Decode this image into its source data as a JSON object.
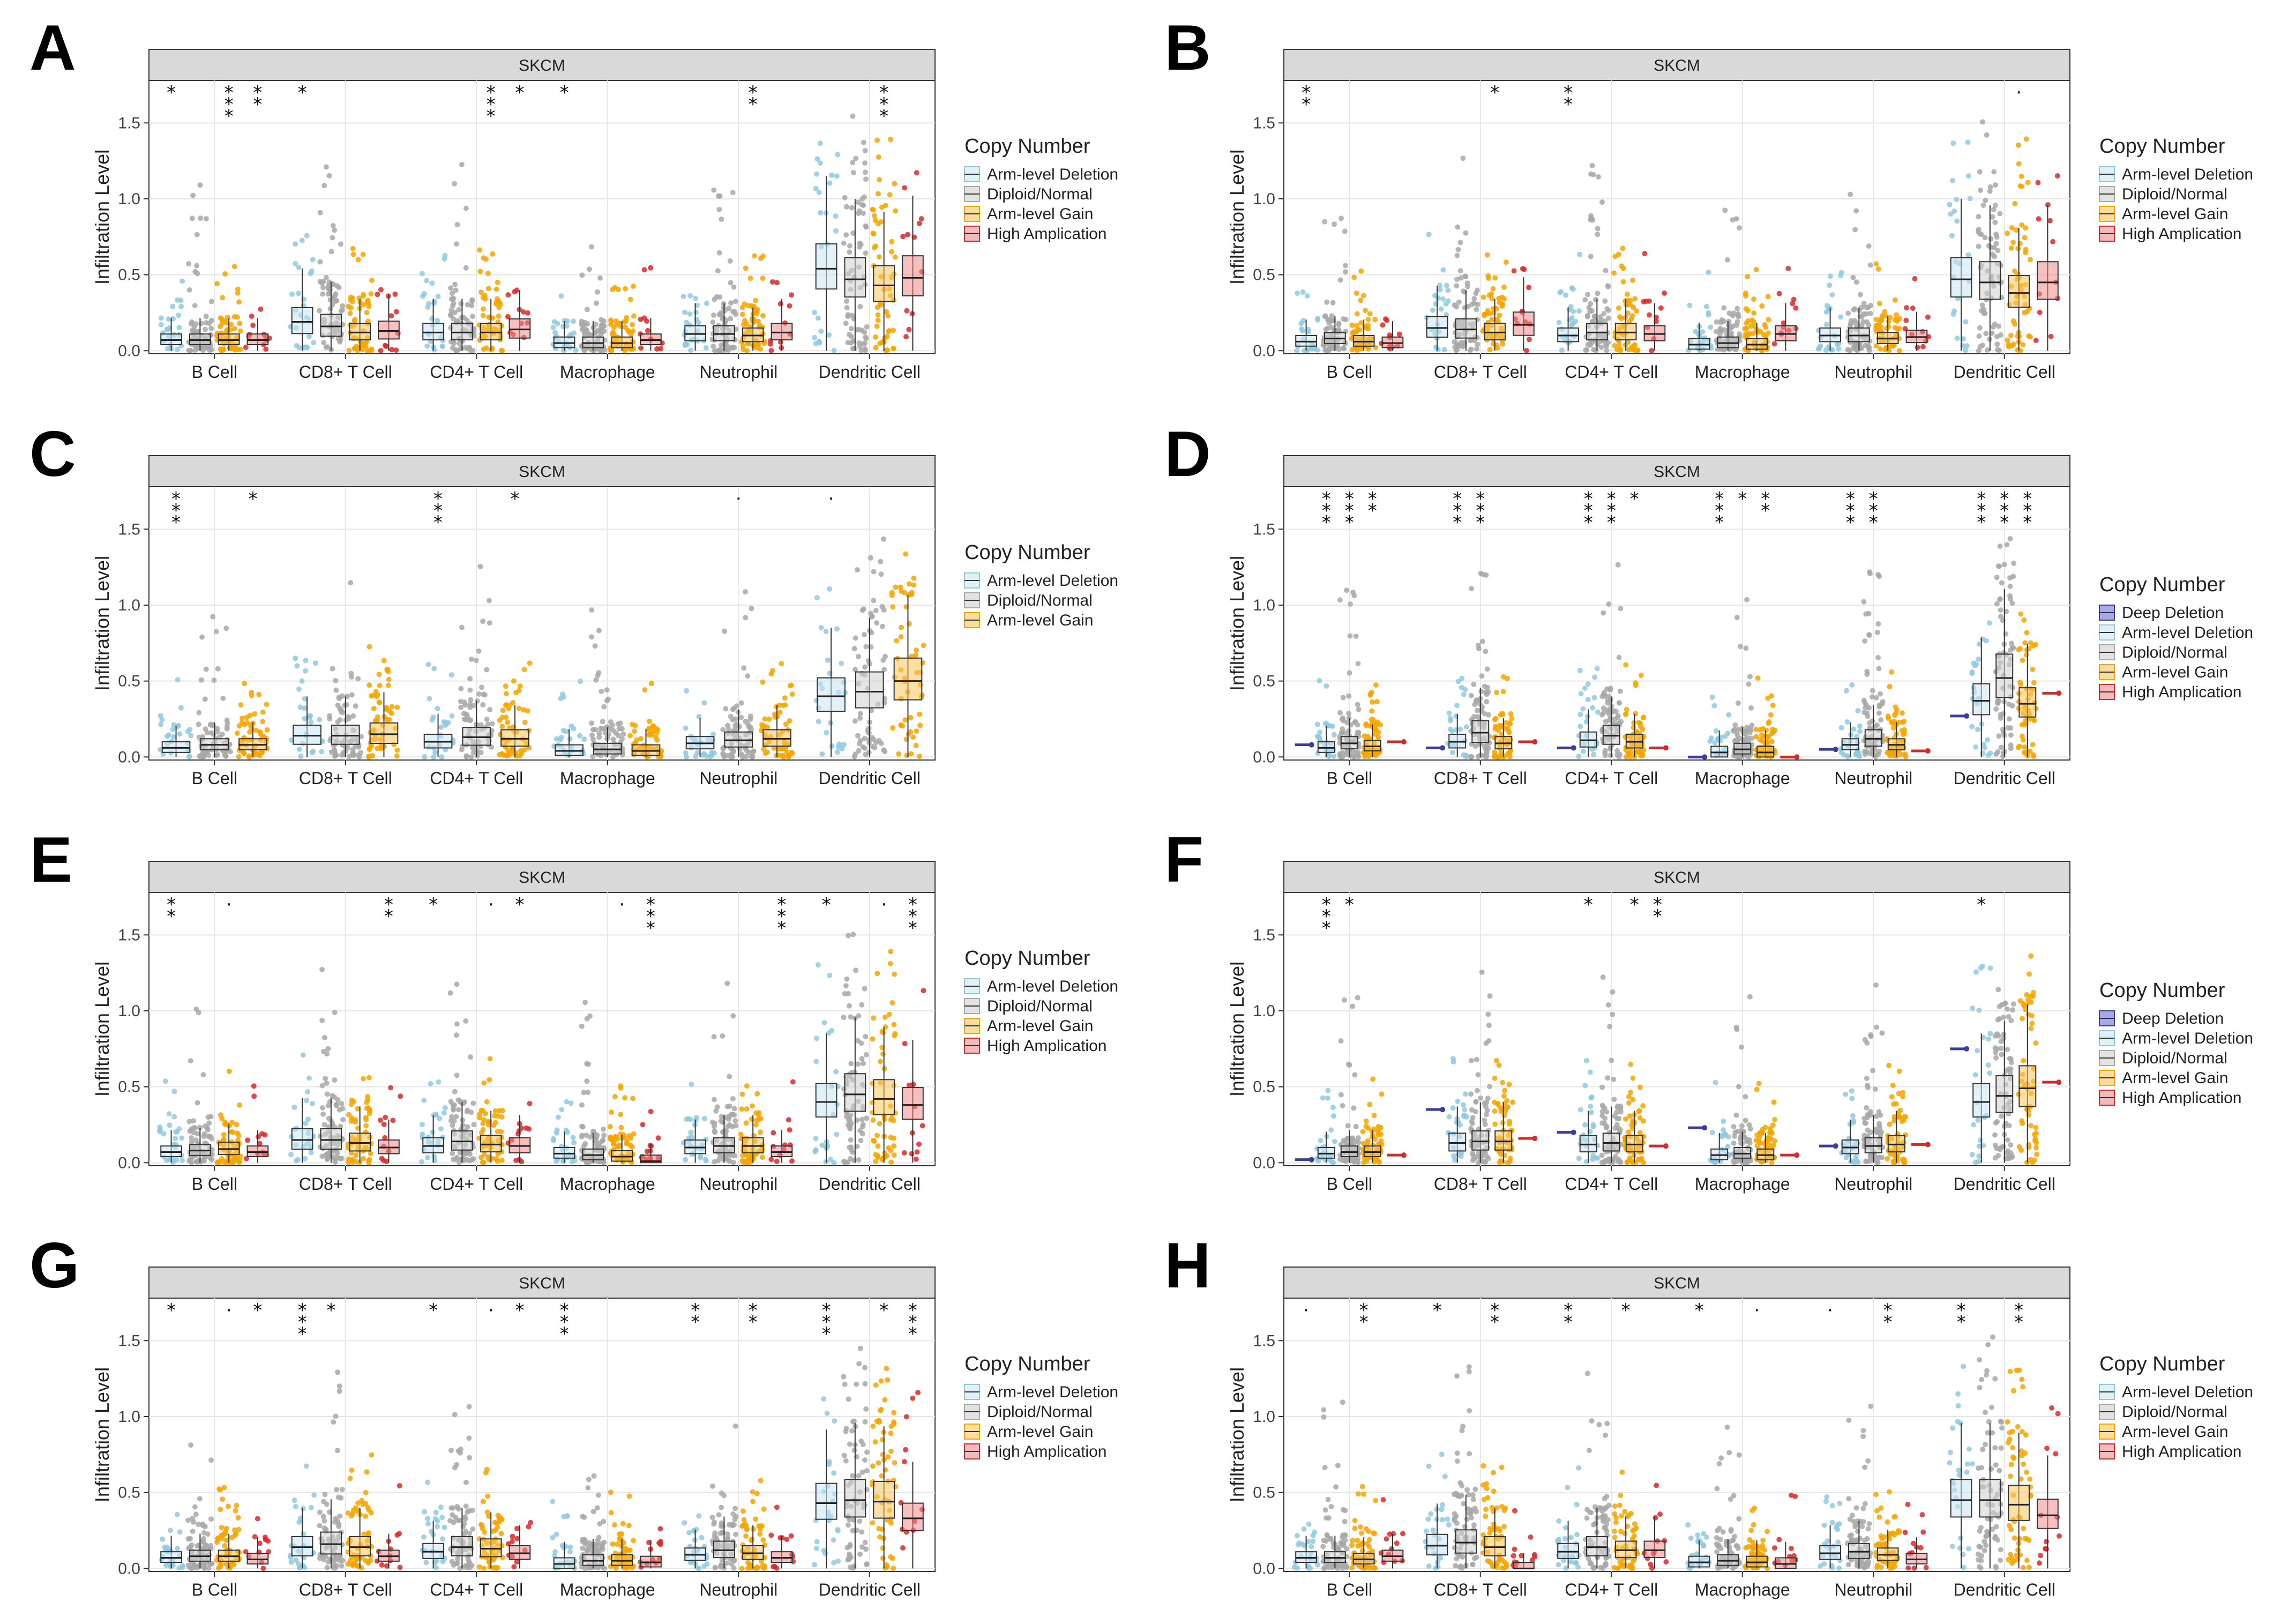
{
  "figure": {
    "groups": [
      "B Cell",
      "CD8+ T Cell",
      "CD4+ T Cell",
      "Macrophage",
      "Neutrophil",
      "Dendritic Cell"
    ],
    "ylabel": "Infiltration Level",
    "yticks": [
      0.0,
      0.5,
      1.0,
      1.5
    ],
    "ylim": [
      -0.02,
      1.78
    ],
    "legend_title": "Copy Number",
    "category_colors": {
      "Deep Deletion": "#3c3c9c",
      "Arm-level Deletion": "#8fc9e0",
      "Diploid/Normal": "#a8a8a8",
      "Arm-level Gain": "#f5a500",
      "High Amplication": "#d62a2a"
    },
    "category_fills": {
      "Deep Deletion": "#6d6de0",
      "Arm-level Deletion": "#cbe6f2",
      "Diploid/Normal": "#cfcfcf",
      "Arm-level Gain": "#f7c45a",
      "High Amplication": "#f08a8a"
    }
  },
  "chart_data": [
    {
      "type": "box",
      "panel": "A",
      "title": "SKCM",
      "categories": [
        "Arm-level Deletion",
        "Diploid/Normal",
        "Arm-level Gain",
        "High Amplication"
      ],
      "medians": [
        [
          0.07,
          0.07,
          0.07,
          0.07
        ],
        [
          0.19,
          0.16,
          0.12,
          0.13
        ],
        [
          0.12,
          0.12,
          0.12,
          0.14
        ],
        [
          0.05,
          0.05,
          0.05,
          0.07
        ],
        [
          0.11,
          0.11,
          0.1,
          0.12
        ],
        [
          0.54,
          0.47,
          0.43,
          0.48
        ]
      ],
      "significance": [
        [
          "*",
          "",
          "* * *",
          "* *"
        ],
        [
          "*",
          "",
          "",
          ""
        ],
        [
          "",
          "",
          "* * *",
          "*"
        ],
        [
          "*",
          "",
          "",
          ""
        ],
        [
          "",
          "",
          "* *",
          ""
        ],
        [
          "",
          "",
          "* * *",
          ""
        ]
      ]
    },
    {
      "type": "box",
      "panel": "B",
      "title": "SKCM",
      "categories": [
        "Arm-level Deletion",
        "Diploid/Normal",
        "Arm-level Gain",
        "High Amplication"
      ],
      "medians": [
        [
          0.06,
          0.08,
          0.06,
          0.05
        ],
        [
          0.15,
          0.14,
          0.12,
          0.17
        ],
        [
          0.1,
          0.12,
          0.12,
          0.11
        ],
        [
          0.04,
          0.05,
          0.04,
          0.11
        ],
        [
          0.1,
          0.1,
          0.08,
          0.09
        ],
        [
          0.47,
          0.45,
          0.38,
          0.45
        ]
      ],
      "significance": [
        [
          "* *",
          "",
          "",
          ""
        ],
        [
          "",
          "",
          "*",
          ""
        ],
        [
          "* *",
          "",
          "",
          ""
        ],
        [
          "",
          "",
          "",
          ""
        ],
        [
          "",
          "",
          "",
          ""
        ],
        [
          "",
          "",
          "·",
          ""
        ]
      ]
    },
    {
      "type": "box",
      "panel": "C",
      "title": "SKCM",
      "categories": [
        "Arm-level Deletion",
        "Diploid/Normal",
        "Arm-level Gain"
      ],
      "medians": [
        [
          0.06,
          0.08,
          0.08
        ],
        [
          0.14,
          0.14,
          0.15
        ],
        [
          0.1,
          0.13,
          0.12
        ],
        [
          0.04,
          0.05,
          0.04
        ],
        [
          0.09,
          0.11,
          0.12
        ],
        [
          0.4,
          0.43,
          0.5
        ]
      ],
      "significance": [
        [
          "* * *",
          "",
          "*"
        ],
        [
          "",
          "",
          ""
        ],
        [
          "* * *",
          "",
          "*"
        ],
        [
          "",
          "",
          ""
        ],
        [
          "",
          "·",
          ""
        ],
        [
          "·",
          "",
          ""
        ]
      ]
    },
    {
      "type": "box",
      "panel": "D",
      "title": "SKCM",
      "categories": [
        "Deep Deletion",
        "Arm-level Deletion",
        "Diploid/Normal",
        "Arm-level Gain",
        "High Amplication"
      ],
      "medians": [
        [
          0.08,
          0.06,
          0.09,
          0.07,
          0.1
        ],
        [
          0.06,
          0.1,
          0.16,
          0.09,
          0.1
        ],
        [
          0.06,
          0.11,
          0.14,
          0.1,
          0.06
        ],
        [
          0.0,
          0.03,
          0.05,
          0.03,
          0.0
        ],
        [
          0.05,
          0.08,
          0.12,
          0.08,
          0.04
        ],
        [
          0.27,
          0.37,
          0.52,
          0.35,
          0.42
        ]
      ],
      "significance": [
        [
          "",
          "* * *",
          "* * *",
          "* *",
          ""
        ],
        [
          "",
          "* * *",
          "* * *",
          "",
          ""
        ],
        [
          "",
          "* * *",
          "* * *",
          "*",
          ""
        ],
        [
          "",
          "* * *",
          "*",
          "* *",
          ""
        ],
        [
          "",
          "* * *",
          "* * *",
          "",
          ""
        ],
        [
          "",
          "* * *",
          "* * *",
          "* * *",
          ""
        ]
      ]
    },
    {
      "type": "box",
      "panel": "E",
      "title": "SKCM",
      "categories": [
        "Arm-level Deletion",
        "Diploid/Normal",
        "Arm-level Gain",
        "High Amplication"
      ],
      "medians": [
        [
          0.07,
          0.08,
          0.09,
          0.07
        ],
        [
          0.15,
          0.15,
          0.13,
          0.1
        ],
        [
          0.11,
          0.14,
          0.12,
          0.11
        ],
        [
          0.06,
          0.05,
          0.04,
          0.01
        ],
        [
          0.1,
          0.11,
          0.11,
          0.07
        ],
        [
          0.4,
          0.45,
          0.42,
          0.38
        ]
      ],
      "significance": [
        [
          "* *",
          "",
          "·",
          ""
        ],
        [
          "",
          "",
          "",
          "* *"
        ],
        [
          "*",
          "",
          "·",
          "*"
        ],
        [
          "",
          "",
          "·",
          "* * *"
        ],
        [
          "",
          "",
          "",
          "* * *"
        ],
        [
          "*",
          "",
          "·",
          "* * *"
        ]
      ]
    },
    {
      "type": "box",
      "panel": "F",
      "title": "SKCM",
      "categories": [
        "Deep Deletion",
        "Arm-level Deletion",
        "Diploid/Normal",
        "Arm-level Gain",
        "High Amplication"
      ],
      "medians": [
        [
          0.02,
          0.06,
          0.07,
          0.07,
          0.05
        ],
        [
          0.35,
          0.13,
          0.14,
          0.14,
          0.16
        ],
        [
          0.2,
          0.12,
          0.13,
          0.12,
          0.11
        ],
        [
          0.23,
          0.05,
          0.06,
          0.05,
          0.05
        ],
        [
          0.11,
          0.1,
          0.11,
          0.12,
          0.12
        ],
        [
          0.75,
          0.4,
          0.44,
          0.49,
          0.53
        ]
      ],
      "significance": [
        [
          "",
          "* * *",
          "*",
          "",
          ""
        ],
        [
          "",
          "",
          "",
          "",
          ""
        ],
        [
          "",
          "*",
          "",
          "*",
          "* *"
        ],
        [
          "",
          "",
          "",
          "",
          ""
        ],
        [
          "",
          "",
          "",
          "",
          ""
        ],
        [
          "",
          "*",
          "",
          "",
          ""
        ]
      ]
    },
    {
      "type": "box",
      "panel": "G",
      "title": "SKCM",
      "categories": [
        "Arm-level Deletion",
        "Diploid/Normal",
        "Arm-level Gain",
        "High Amplication"
      ],
      "medians": [
        [
          0.07,
          0.08,
          0.08,
          0.06
        ],
        [
          0.14,
          0.16,
          0.14,
          0.08
        ],
        [
          0.11,
          0.14,
          0.13,
          0.1
        ],
        [
          0.03,
          0.05,
          0.05,
          0.04
        ],
        [
          0.09,
          0.12,
          0.1,
          0.07
        ],
        [
          0.43,
          0.45,
          0.44,
          0.33
        ]
      ],
      "significance": [
        [
          "*",
          "",
          "·",
          "*"
        ],
        [
          "* * *",
          "*",
          "",
          ""
        ],
        [
          "*",
          "",
          "·",
          "*"
        ],
        [
          "* * *",
          "",
          "",
          ""
        ],
        [
          "* *",
          "",
          "* *",
          ""
        ],
        [
          "* * *",
          "",
          "*",
          "* * *"
        ]
      ]
    },
    {
      "type": "box",
      "panel": "H",
      "title": "SKCM",
      "categories": [
        "Arm-level Deletion",
        "Diploid/Normal",
        "Arm-level Gain",
        "High Amplication"
      ],
      "medians": [
        [
          0.07,
          0.07,
          0.06,
          0.08
        ],
        [
          0.15,
          0.17,
          0.14,
          0.0
        ],
        [
          0.11,
          0.14,
          0.12,
          0.12
        ],
        [
          0.04,
          0.05,
          0.04,
          0.03
        ],
        [
          0.1,
          0.11,
          0.09,
          0.06
        ],
        [
          0.45,
          0.45,
          0.42,
          0.35
        ]
      ],
      "significance": [
        [
          "·",
          "",
          "* *",
          ""
        ],
        [
          "*",
          "",
          "* *",
          ""
        ],
        [
          "* *",
          "",
          "*",
          ""
        ],
        [
          "*",
          "",
          "·",
          ""
        ],
        [
          "·",
          "",
          "* *",
          ""
        ],
        [
          "* *",
          "",
          "* *",
          ""
        ]
      ]
    }
  ]
}
